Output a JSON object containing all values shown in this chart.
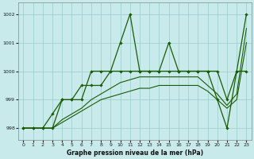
{
  "background_color": "#c8eaea",
  "grid_color": "#99cccc",
  "line_color": "#1a5c00",
  "xlabel": "Graphe pression niveau de la mer (hPa)",
  "xlim": [
    -0.5,
    23.5
  ],
  "ylim": [
    997.6,
    1002.4
  ],
  "yticks": [
    998,
    999,
    1000,
    1001,
    1002
  ],
  "xticks": [
    0,
    1,
    2,
    3,
    4,
    5,
    6,
    7,
    8,
    9,
    10,
    11,
    12,
    13,
    14,
    15,
    16,
    17,
    18,
    19,
    20,
    21,
    22,
    23
  ],
  "series": [
    [
      998,
      998,
      998,
      998,
      999,
      999,
      999,
      1000,
      1000,
      1000,
      1001,
      1002,
      1000,
      1000,
      1000,
      1001,
      1000,
      1000,
      1000,
      1000,
      999,
      998,
      1000,
      1002
    ],
    [
      998,
      998,
      998,
      998.5,
      999,
      999,
      999.5,
      999.5,
      999.5,
      1000,
      1000,
      1000,
      1000,
      1000,
      1000,
      1000,
      1000,
      1000,
      1000,
      1000,
      1000,
      999,
      1000,
      1000
    ],
    [
      998,
      998,
      998,
      998,
      998.3,
      998.5,
      998.7,
      999.0,
      999.2,
      999.4,
      999.6,
      999.7,
      999.8,
      999.8,
      999.8,
      999.8,
      999.8,
      999.8,
      999.8,
      999.5,
      999.2,
      998.8,
      999.2,
      1001.5
    ],
    [
      998,
      998,
      998,
      998,
      998.2,
      998.4,
      998.6,
      998.8,
      999.0,
      999.1,
      999.2,
      999.3,
      999.4,
      999.4,
      999.5,
      999.5,
      999.5,
      999.5,
      999.5,
      999.3,
      999.0,
      998.7,
      999.0,
      1001.0
    ]
  ],
  "marker_series": [
    0,
    1
  ],
  "figsize": [
    3.2,
    2.0
  ],
  "dpi": 100
}
